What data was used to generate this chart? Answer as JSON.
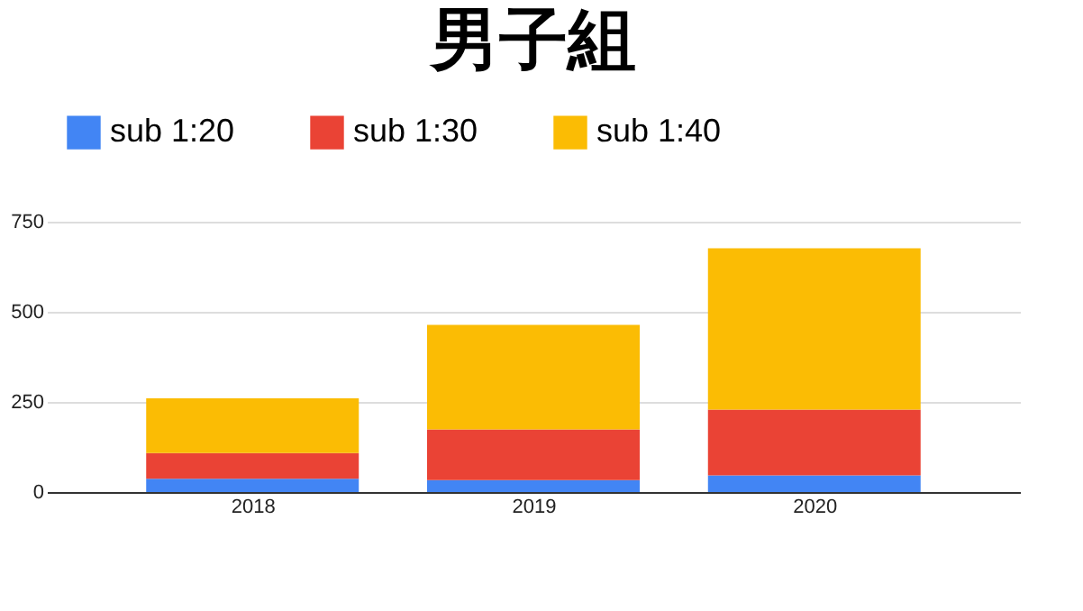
{
  "chart_data": {
    "type": "bar",
    "title": "男子組",
    "stacked": true,
    "categories": [
      "2018",
      "2019",
      "2020"
    ],
    "series": [
      {
        "name": "sub 1:20",
        "color": "#4285f4",
        "values": [
          37,
          33,
          46
        ]
      },
      {
        "name": "sub 1:30",
        "color": "#ea4335",
        "values": [
          71,
          141,
          183
        ]
      },
      {
        "name": "sub 1:40",
        "color": "#fbbc04",
        "values": [
          152,
          290,
          447
        ]
      }
    ],
    "ylim": [
      0,
      750
    ],
    "yticks": [
      0,
      250,
      500,
      750
    ],
    "grid": "y",
    "legend": "top"
  }
}
